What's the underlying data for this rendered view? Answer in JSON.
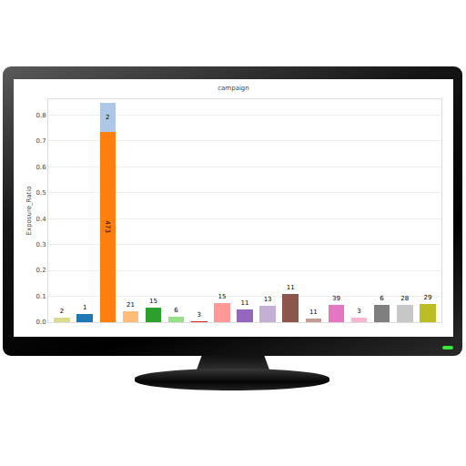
{
  "chart_data": {
    "type": "bar",
    "title": "campaign",
    "y_label": "Exposure_Ratio",
    "categories": [
      null,
      null,
      null,
      null,
      null,
      null,
      null,
      null,
      null,
      null,
      null,
      null,
      null,
      null,
      null,
      null,
      null
    ],
    "stacked": true,
    "grid": true,
    "tick_labels": "y",
    "data_labels": true,
    "ylim": [
      0,
      0.86
    ],
    "yticks": [
      {
        "value": 0,
        "label": "0.0"
      },
      0.1,
      0.2,
      0.3,
      0.4,
      0.5,
      0.6,
      0.7,
      0.8
    ],
    "series": [
      {
        "values": [
          0.017,
          0.03,
          0.735,
          0.042,
          0.056,
          0.02,
          0.005,
          0.075,
          0.05,
          0.063,
          0.108,
          0.015,
          0.065,
          0.018,
          0.065,
          0.065,
          0.07
        ],
        "counts": [
          2,
          1,
          473,
          21,
          15,
          6,
          3,
          15,
          11,
          13,
          11,
          11,
          39,
          3,
          6,
          28,
          29
        ],
        "colors": [
          "#dbdb8d",
          "#1f77b4",
          "#ff7f0e",
          "#ffbb78",
          "#2ca02c",
          "#98df8a",
          "#d62728",
          "#ff9896",
          "#9467bd",
          "#c5b0d5",
          "#8c564b",
          "#c49c94",
          "#e377c2",
          "#f7b6d2",
          "#7f7f7f",
          "#c7c7c7",
          "#bcbd22"
        ]
      },
      {
        "values": [
          null,
          null,
          0.11,
          null,
          null,
          null,
          null,
          null,
          null,
          null,
          null,
          null,
          null,
          null,
          null,
          null,
          null
        ],
        "counts": [
          null,
          null,
          2,
          null,
          null,
          null,
          null,
          null,
          null,
          null,
          null,
          null,
          null,
          null,
          null,
          null,
          null
        ],
        "color": "#aec7e8"
      }
    ]
  }
}
